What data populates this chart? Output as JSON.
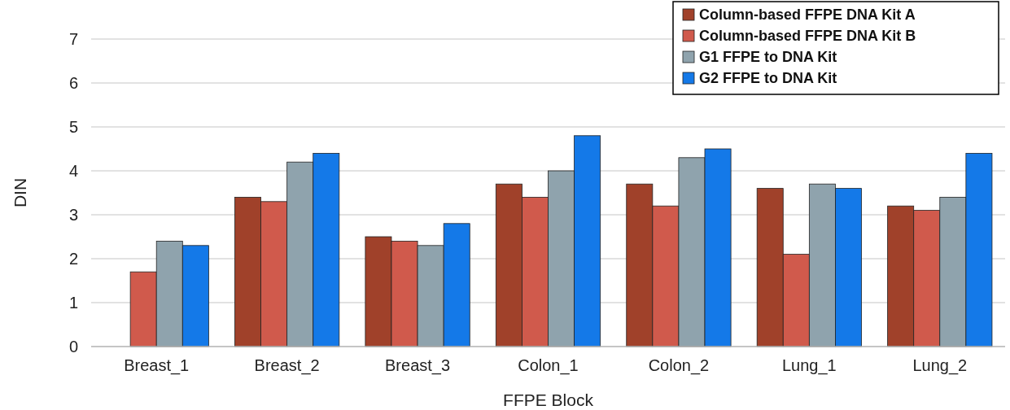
{
  "chart_data": {
    "type": "bar",
    "xlabel": "FFPE Block",
    "ylabel": "DIN",
    "categories": [
      "Breast_1",
      "Breast_2",
      "Breast_3",
      "Colon_1",
      "Colon_2",
      "Lung_1",
      "Lung_2"
    ],
    "series": [
      {
        "name": "Column-based FFPE DNA Kit A",
        "color": "#a0412a",
        "values": [
          null,
          3.4,
          2.5,
          3.7,
          3.7,
          3.6,
          3.2
        ]
      },
      {
        "name": "Column-based FFPE DNA Kit B",
        "color": "#d05a4c",
        "values": [
          1.7,
          3.3,
          2.4,
          3.4,
          3.2,
          2.1,
          3.1
        ]
      },
      {
        "name": "G1 FFPE to DNA Kit",
        "color": "#8fa3ad",
        "values": [
          2.4,
          4.2,
          2.3,
          4.0,
          4.3,
          3.7,
          3.4
        ]
      },
      {
        "name": "G2 FFPE to DNA Kit",
        "color": "#1479e8",
        "values": [
          2.3,
          4.4,
          2.8,
          4.8,
          4.5,
          3.6,
          4.4
        ]
      }
    ],
    "ylim": [
      0,
      7
    ],
    "yticks": [
      0,
      1,
      2,
      3,
      4,
      5,
      6,
      7
    ],
    "grid": "y",
    "legend": "top right"
  }
}
